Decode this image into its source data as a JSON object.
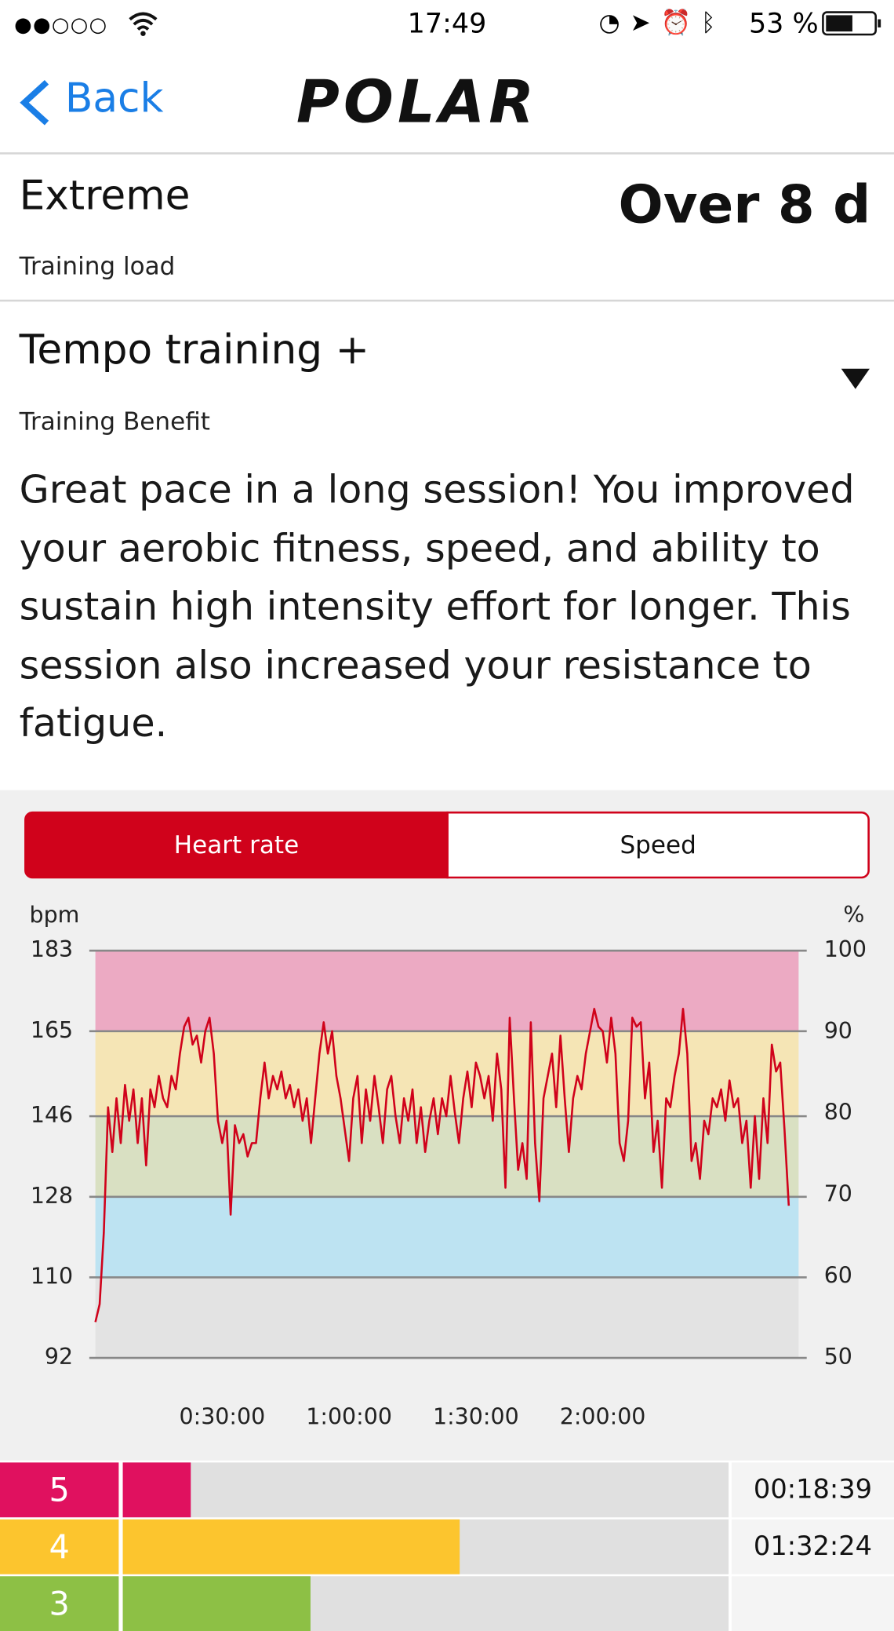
{
  "status_bar": {
    "time": "17:49",
    "battery": "53 %"
  },
  "nav": {
    "back": "Back",
    "logo": "POLAR"
  },
  "training_load": {
    "value": "Extreme",
    "label": "Training load",
    "recovery": "Over 8 d"
  },
  "training_benefit": {
    "value": "Tempo training +",
    "label": "Training Benefit",
    "description": "Great pace in a long session! You improved your aerobic fitness, speed, and ability to sustain high intensity effort for longer. This session also increased your resistance to fatigue."
  },
  "tabs": [
    "Heart rate",
    "Speed"
  ],
  "chart_data": {
    "type": "line",
    "y_label": "bpm",
    "y2_label": "%",
    "xlim": [
      0,
      9980
    ],
    "xticks": [
      {
        "value": 1800,
        "label": "0:30:00"
      },
      {
        "value": 3600,
        "label": "1:00:00"
      },
      {
        "value": 5400,
        "label": "1:30:00"
      },
      {
        "value": 7200,
        "label": "2:00:00"
      }
    ],
    "ylim": [
      92,
      183
    ],
    "yticks": [
      92,
      110,
      128,
      146,
      165,
      183
    ],
    "y2lim": [
      50,
      100
    ],
    "y2ticks": [
      50,
      60,
      70,
      80,
      90,
      100
    ],
    "zones": [
      {
        "from": 92,
        "to": 110,
        "color": "#e3e3e3"
      },
      {
        "from": 110,
        "to": 128,
        "color": "#bde3f2"
      },
      {
        "from": 128,
        "to": 146,
        "color": "#d9e0c2"
      },
      {
        "from": 146,
        "to": 165,
        "color": "#f5e5b5"
      },
      {
        "from": 165,
        "to": 183,
        "color": "#ecaac3"
      }
    ],
    "series": [
      {
        "color": "#d0021b",
        "x": [
          0,
          60,
          120,
          180,
          240,
          300,
          360,
          420,
          480,
          540,
          600,
          660,
          720,
          780,
          840,
          900,
          960,
          1020,
          1080,
          1140,
          1200,
          1260,
          1320,
          1380,
          1440,
          1500,
          1560,
          1620,
          1680,
          1740,
          1800,
          1860,
          1920,
          1980,
          2040,
          2100,
          2160,
          2220,
          2280,
          2340,
          2400,
          2460,
          2520,
          2580,
          2640,
          2700,
          2760,
          2820,
          2880,
          2940,
          3000,
          3060,
          3120,
          3180,
          3240,
          3300,
          3360,
          3420,
          3480,
          3540,
          3600,
          3660,
          3720,
          3780,
          3840,
          3900,
          3960,
          4020,
          4080,
          4140,
          4200,
          4260,
          4320,
          4380,
          4440,
          4500,
          4560,
          4620,
          4680,
          4740,
          4800,
          4860,
          4920,
          4980,
          5040,
          5100,
          5160,
          5220,
          5280,
          5340,
          5400,
          5460,
          5520,
          5580,
          5640,
          5700,
          5760,
          5820,
          5880,
          5940,
          6000,
          6060,
          6120,
          6180,
          6240,
          6300,
          6360,
          6420,
          6480,
          6540,
          6600,
          6660,
          6720,
          6780,
          6840,
          6900,
          6960,
          7020,
          7080,
          7140,
          7200,
          7260,
          7320,
          7380,
          7440,
          7500,
          7560,
          7620,
          7680,
          7740,
          7800,
          7860,
          7920,
          7980,
          8040,
          8100,
          8160,
          8220,
          8280,
          8340,
          8400,
          8460,
          8520,
          8580,
          8640,
          8700,
          8760,
          8820,
          8880,
          8940,
          9000,
          9060,
          9120,
          9180,
          9240,
          9300,
          9360,
          9420,
          9480,
          9540,
          9600,
          9660,
          9720,
          9780,
          9840
        ],
        "values": [
          100,
          104,
          120,
          148,
          138,
          150,
          140,
          153,
          145,
          152,
          140,
          150,
          135,
          152,
          148,
          155,
          150,
          148,
          155,
          152,
          160,
          166,
          168,
          162,
          164,
          158,
          165,
          168,
          160,
          145,
          140,
          145,
          124,
          144,
          140,
          142,
          137,
          140,
          140,
          150,
          158,
          150,
          155,
          152,
          156,
          150,
          153,
          148,
          152,
          145,
          150,
          140,
          150,
          160,
          167,
          160,
          165,
          155,
          150,
          143,
          136,
          150,
          155,
          140,
          152,
          145,
          155,
          148,
          140,
          152,
          155,
          146,
          140,
          150,
          145,
          152,
          140,
          148,
          138,
          145,
          150,
          142,
          150,
          146,
          155,
          147,
          140,
          150,
          156,
          148,
          158,
          155,
          150,
          155,
          145,
          160,
          152,
          130,
          168,
          150,
          134,
          140,
          132,
          167,
          140,
          127,
          150,
          155,
          160,
          148,
          164,
          150,
          138,
          150,
          155,
          152,
          160,
          165,
          170,
          166,
          165,
          158,
          168,
          160,
          140,
          136,
          145,
          168,
          166,
          167,
          150,
          158,
          138,
          145,
          130,
          150,
          148,
          155,
          160,
          170,
          160,
          136,
          140,
          132,
          145,
          142,
          150,
          148,
          152,
          145,
          154,
          148,
          150,
          140,
          145,
          130,
          146,
          132,
          150,
          140,
          162,
          156,
          158,
          143,
          126
        ]
      }
    ]
  },
  "zone_table": {
    "xlim": [
      0,
      9980
    ],
    "rows": [
      {
        "zone": "5",
        "color": "#e0115f",
        "seconds": 1119,
        "duration": "00:18:39"
      },
      {
        "zone": "4",
        "color": "#fcc52e",
        "seconds": 5544,
        "duration": "01:32:24"
      },
      {
        "zone": "3",
        "color": "#8dc045",
        "seconds": 3090
      }
    ]
  }
}
